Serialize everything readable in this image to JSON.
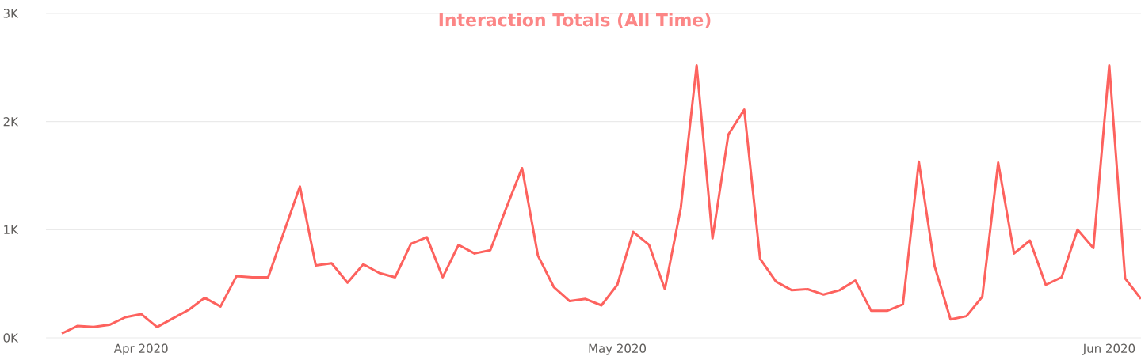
{
  "chart_data": {
    "type": "line",
    "title": "Interaction Totals (All Time)",
    "x": [
      "2020-03-27",
      "2020-03-28",
      "2020-03-29",
      "2020-03-30",
      "2020-03-31",
      "2020-04-01",
      "2020-04-02",
      "2020-04-03",
      "2020-04-04",
      "2020-04-05",
      "2020-04-06",
      "2020-04-07",
      "2020-04-08",
      "2020-04-09",
      "2020-04-10",
      "2020-04-11",
      "2020-04-12",
      "2020-04-13",
      "2020-04-14",
      "2020-04-15",
      "2020-04-16",
      "2020-04-17",
      "2020-04-18",
      "2020-04-19",
      "2020-04-20",
      "2020-04-21",
      "2020-04-22",
      "2020-04-23",
      "2020-04-24",
      "2020-04-25",
      "2020-04-26",
      "2020-04-27",
      "2020-04-28",
      "2020-04-29",
      "2020-04-30",
      "2020-05-01",
      "2020-05-02",
      "2020-05-03",
      "2020-05-04",
      "2020-05-05",
      "2020-05-06",
      "2020-05-07",
      "2020-05-08",
      "2020-05-09",
      "2020-05-10",
      "2020-05-11",
      "2020-05-12",
      "2020-05-13",
      "2020-05-14",
      "2020-05-15",
      "2020-05-16",
      "2020-05-17",
      "2020-05-18",
      "2020-05-19",
      "2020-05-20",
      "2020-05-21",
      "2020-05-22",
      "2020-05-23",
      "2020-05-24",
      "2020-05-25",
      "2020-05-26",
      "2020-05-27",
      "2020-05-28",
      "2020-05-29",
      "2020-05-30",
      "2020-05-31",
      "2020-06-01",
      "2020-06-02",
      "2020-06-03"
    ],
    "series": [
      {
        "color": "#fd625e",
        "values": [
          40,
          110,
          100,
          120,
          190,
          220,
          100,
          180,
          260,
          370,
          290,
          570,
          560,
          560,
          980,
          1400,
          670,
          690,
          510,
          680,
          600,
          560,
          870,
          930,
          560,
          860,
          780,
          810,
          1200,
          1570,
          760,
          470,
          340,
          360,
          300,
          490,
          980,
          860,
          450,
          1200,
          2520,
          920,
          1880,
          2110,
          730,
          520,
          440,
          450,
          400,
          440,
          530,
          250,
          250,
          310,
          1630,
          660,
          170,
          200,
          380,
          1620,
          780,
          900,
          490,
          560,
          1000,
          830,
          2520,
          550,
          360
        ]
      }
    ],
    "xlim": [
      "2020-03-26",
      "2020-06-03"
    ],
    "xticks": [
      {
        "value": "2020-04-01",
        "label": "Apr 2020"
      },
      {
        "value": "2020-05-01",
        "label": "May 2020"
      },
      {
        "value": "2020-06-01",
        "label": "Jun 2020"
      }
    ],
    "ylim": [
      0,
      3000
    ],
    "yticks": [
      {
        "value": 0,
        "label": "0K"
      },
      {
        "value": 1000,
        "label": "1K"
      },
      {
        "value": 2000,
        "label": "2K"
      },
      {
        "value": 3000,
        "label": "3K"
      }
    ],
    "grid": "y"
  }
}
